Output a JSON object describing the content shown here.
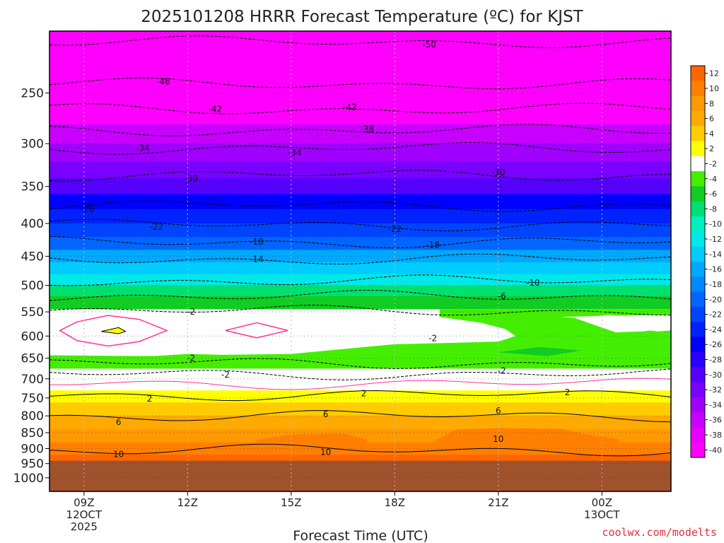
{
  "chart_data": {
    "type": "heatmap",
    "title": "2025101208 HRRR Forecast Temperature (ºC) for KJST",
    "xlabel": "Forecast Time (UTC)",
    "ylabel": "",
    "credit": "coolwx.com/modelts",
    "x_ticks": [
      {
        "hour": 9,
        "lines": [
          "09Z",
          "12OCT",
          "2025"
        ]
      },
      {
        "hour": 12,
        "lines": [
          "12Z"
        ]
      },
      {
        "hour": 15,
        "lines": [
          "15Z"
        ]
      },
      {
        "hour": 18,
        "lines": [
          "18Z"
        ]
      },
      {
        "hour": 21,
        "lines": [
          "21Z"
        ]
      },
      {
        "hour": 24,
        "lines": [
          "00Z",
          "13OCT"
        ]
      }
    ],
    "xlim": [
      8,
      26
    ],
    "y_ticks": [
      250,
      300,
      350,
      400,
      450,
      500,
      550,
      600,
      650,
      700,
      750,
      800,
      850,
      900,
      950,
      1000
    ],
    "ylim_hPa": [
      200,
      1050
    ],
    "y_scale": "log",
    "y_inverted": true,
    "ground_level_hPa": 940,
    "ground_color": "#a0522d",
    "colorbar": {
      "labels": [
        "12",
        "10",
        "8",
        "6",
        "4",
        "2",
        "-2",
        "-4",
        "-6",
        "-8",
        "-10",
        "-12",
        "-14",
        "-16",
        "-18",
        "-20",
        "-22",
        "-24",
        "-26",
        "-28",
        "-30",
        "-32",
        "-34",
        "-36",
        "-38",
        "-40"
      ],
      "colors": [
        "#ff6600",
        "#ff8000",
        "#ff9900",
        "#ffaa00",
        "#ffcc00",
        "#ffff00",
        "#ffffff",
        "#44ee00",
        "#11cc22",
        "#00e070",
        "#00f0c0",
        "#00e8e8",
        "#00ccff",
        "#00a8ff",
        "#0088ff",
        "#0066ff",
        "#0044ff",
        "#0022ff",
        "#0000ff",
        "#2a00ff",
        "#5500ff",
        "#7a00ff",
        "#a000ff",
        "#c800ff",
        "#e800ff",
        "#ff00ff"
      ]
    },
    "levels": [
      {
        "p": 210,
        "t": -52
      },
      {
        "p": 230,
        "t": -48
      },
      {
        "p": 250,
        "t": -45
      },
      {
        "p": 270,
        "t": -40
      },
      {
        "p": 290,
        "t": -36
      },
      {
        "p": 310,
        "t": -33
      },
      {
        "p": 330,
        "t": -31
      },
      {
        "p": 350,
        "t": -29
      },
      {
        "p": 370,
        "t": -26
      },
      {
        "p": 390,
        "t": -23
      },
      {
        "p": 410,
        "t": -21
      },
      {
        "p": 430,
        "t": -19
      },
      {
        "p": 450,
        "t": -16
      },
      {
        "p": 470,
        "t": -13
      },
      {
        "p": 490,
        "t": -11
      },
      {
        "p": 510,
        "t": -8
      },
      {
        "p": 530,
        "t": -5
      },
      {
        "p": 560,
        "t": -1
      },
      {
        "p": 600,
        "t": -1
      },
      {
        "p": 630,
        "t": -1.5
      },
      {
        "p": 660,
        "t": -3
      },
      {
        "p": 690,
        "t": -1
      },
      {
        "p": 715,
        "t": 0
      },
      {
        "p": 745,
        "t": 3
      },
      {
        "p": 780,
        "t": 5
      },
      {
        "p": 820,
        "t": 7
      },
      {
        "p": 860,
        "t": 9
      },
      {
        "p": 900,
        "t": 11
      },
      {
        "p": 940,
        "t": 12
      }
    ],
    "contour_labels": [
      {
        "hour": 19.0,
        "p": 210,
        "text": "-50"
      },
      {
        "hour": 11.3,
        "p": 240,
        "text": "-46"
      },
      {
        "hour": 12.8,
        "p": 265,
        "text": "-42"
      },
      {
        "hour": 16.7,
        "p": 263,
        "text": "-42"
      },
      {
        "hour": 17.2,
        "p": 285,
        "text": "-38"
      },
      {
        "hour": 10.7,
        "p": 305,
        "text": "-34"
      },
      {
        "hour": 15.1,
        "p": 310,
        "text": "-34"
      },
      {
        "hour": 12.1,
        "p": 340,
        "text": "-30"
      },
      {
        "hour": 21.0,
        "p": 333,
        "text": "-30"
      },
      {
        "hour": 9.1,
        "p": 380,
        "text": "-26"
      },
      {
        "hour": 11.1,
        "p": 405,
        "text": "-22"
      },
      {
        "hour": 18.0,
        "p": 408,
        "text": "-22"
      },
      {
        "hour": 14.0,
        "p": 427,
        "text": "-18"
      },
      {
        "hour": 19.1,
        "p": 432,
        "text": "-18"
      },
      {
        "hour": 14.0,
        "p": 455,
        "text": "-14"
      },
      {
        "hour": 22.0,
        "p": 495,
        "text": "-10"
      },
      {
        "hour": 21.1,
        "p": 520,
        "text": "-6"
      },
      {
        "hour": 12.1,
        "p": 550,
        "text": "-2"
      },
      {
        "hour": 19.1,
        "p": 605,
        "text": "-2"
      },
      {
        "hour": 12.1,
        "p": 650,
        "text": "-2"
      },
      {
        "hour": 13.1,
        "p": 690,
        "text": "-2"
      },
      {
        "hour": 21.1,
        "p": 680,
        "text": "-2"
      },
      {
        "hour": 10.9,
        "p": 752,
        "text": "2"
      },
      {
        "hour": 17.1,
        "p": 738,
        "text": "2"
      },
      {
        "hour": 23.0,
        "p": 735,
        "text": "2"
      },
      {
        "hour": 10.0,
        "p": 818,
        "text": "6"
      },
      {
        "hour": 16.0,
        "p": 795,
        "text": "6"
      },
      {
        "hour": 21.0,
        "p": 785,
        "text": "6"
      },
      {
        "hour": 10.0,
        "p": 918,
        "text": "10"
      },
      {
        "hour": 16.0,
        "p": 912,
        "text": "10"
      },
      {
        "hour": 21.0,
        "p": 870,
        "text": "10"
      }
    ]
  }
}
